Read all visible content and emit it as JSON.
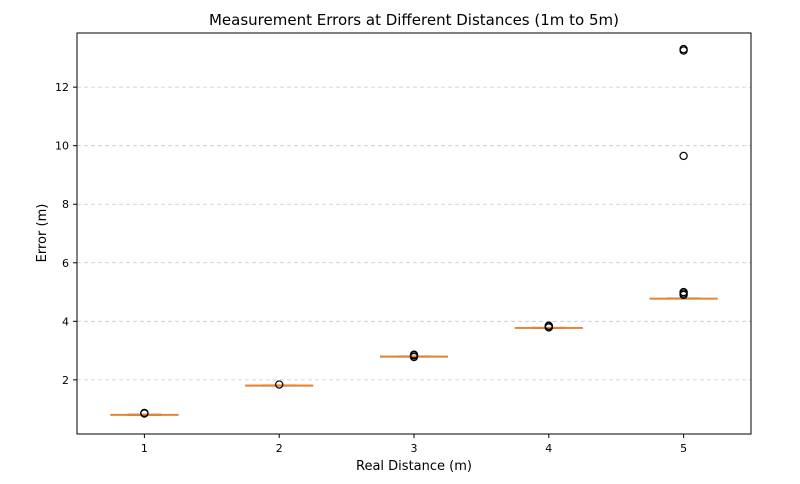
{
  "chart_data": {
    "type": "box",
    "title": "Measurement Errors at Different Distances (1m to 5m)",
    "xlabel": "Real Distance (m)",
    "ylabel": "Error (m)",
    "categories": [
      "1",
      "2",
      "3",
      "4",
      "5"
    ],
    "xlim": [
      0.5,
      5.5
    ],
    "ylim": [
      0.15,
      13.85
    ],
    "yticks": [
      2,
      4,
      6,
      8,
      10,
      12
    ],
    "grid": {
      "y": true,
      "x": false,
      "style": "dashed"
    },
    "box_color": "#ff7f0e",
    "median_color": "#ff7f0e",
    "boxes": [
      {
        "category": "1",
        "q1": 0.8,
        "median": 0.81,
        "q3": 0.82,
        "whisker_low": 0.79,
        "whisker_high": 0.83,
        "outliers": [
          0.85,
          0.87
        ]
      },
      {
        "category": "2",
        "q1": 1.8,
        "median": 1.81,
        "q3": 1.82,
        "whisker_low": 1.79,
        "whisker_high": 1.83,
        "outliers": [
          1.84
        ]
      },
      {
        "category": "3",
        "q1": 2.79,
        "median": 2.8,
        "q3": 2.81,
        "whisker_low": 2.78,
        "whisker_high": 2.82,
        "outliers": [
          2.78,
          2.83,
          2.86
        ]
      },
      {
        "category": "4",
        "q1": 3.77,
        "median": 3.78,
        "q3": 3.79,
        "whisker_low": 3.76,
        "whisker_high": 3.8,
        "outliers": [
          3.79,
          3.83,
          3.85
        ]
      },
      {
        "category": "5",
        "q1": 4.77,
        "median": 4.78,
        "q3": 4.79,
        "whisker_low": 4.76,
        "whisker_high": 4.8,
        "outliers": [
          4.9,
          4.95,
          5.0,
          9.65,
          13.25,
          13.3
        ]
      }
    ]
  }
}
